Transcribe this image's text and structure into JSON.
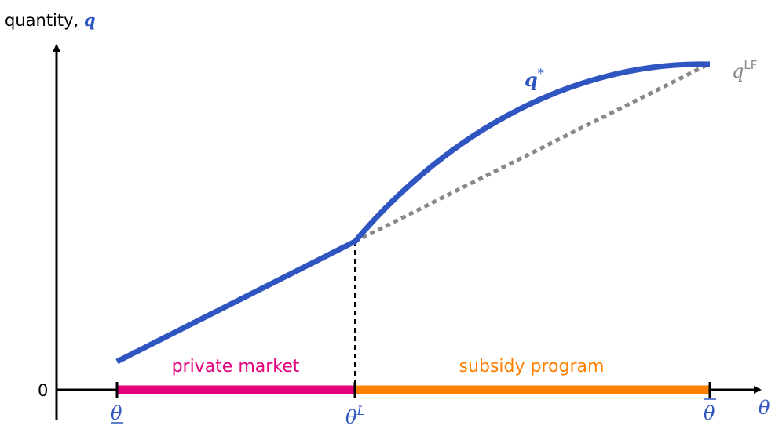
{
  "axis": {
    "y_label_text": "quantity, ",
    "y_label_symbol": "q",
    "x_label_symbol": "θ",
    "zero_label": "0"
  },
  "ticks": {
    "theta_low": "θ",
    "theta_L_base": "θ",
    "theta_L_sup": "L",
    "theta_high": "θ"
  },
  "curves": {
    "q_star_base": "q",
    "q_star_sup": "*",
    "q_lf_base": "q",
    "q_lf_sup": "LF"
  },
  "segments": {
    "private_market": "private market",
    "subsidy_program": "subsidy program"
  },
  "colors": {
    "blue": "#2f55c0",
    "gray": "#888888",
    "magenta": "#e5007d",
    "orange": "#ff8000",
    "black": "#000000"
  }
}
